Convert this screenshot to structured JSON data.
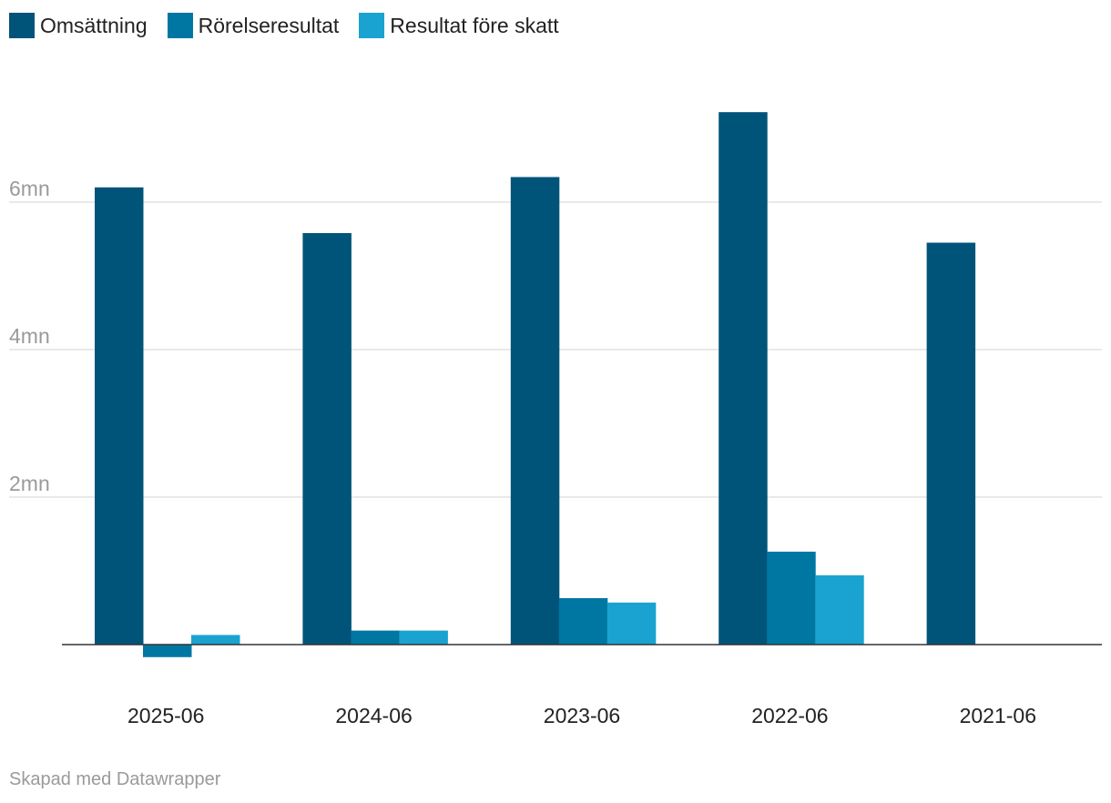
{
  "chart_data": {
    "type": "bar",
    "categories": [
      "2025-06",
      "2024-06",
      "2023-06",
      "2022-06",
      "2021-06"
    ],
    "series": [
      {
        "name": "Omsättning",
        "color": "#00547a",
        "values": [
          6.2,
          5.58,
          6.34,
          7.22,
          5.45
        ]
      },
      {
        "name": "Rörelseresultat",
        "color": "#0077a3",
        "values": [
          -0.17,
          0.19,
          0.63,
          1.26,
          0
        ]
      },
      {
        "name": "Resultat före skatt",
        "color": "#1aa3d0",
        "values": [
          0.13,
          0.19,
          0.57,
          0.94,
          0
        ]
      }
    ],
    "y_ticks": [
      {
        "value": 2,
        "label": "2mn"
      },
      {
        "value": 4,
        "label": "4mn"
      },
      {
        "value": 6,
        "label": "6mn"
      }
    ],
    "ylim": [
      -0.4,
      7.6
    ],
    "grid": true,
    "legend": "top-left",
    "credit": "Skapad med Datawrapper"
  }
}
